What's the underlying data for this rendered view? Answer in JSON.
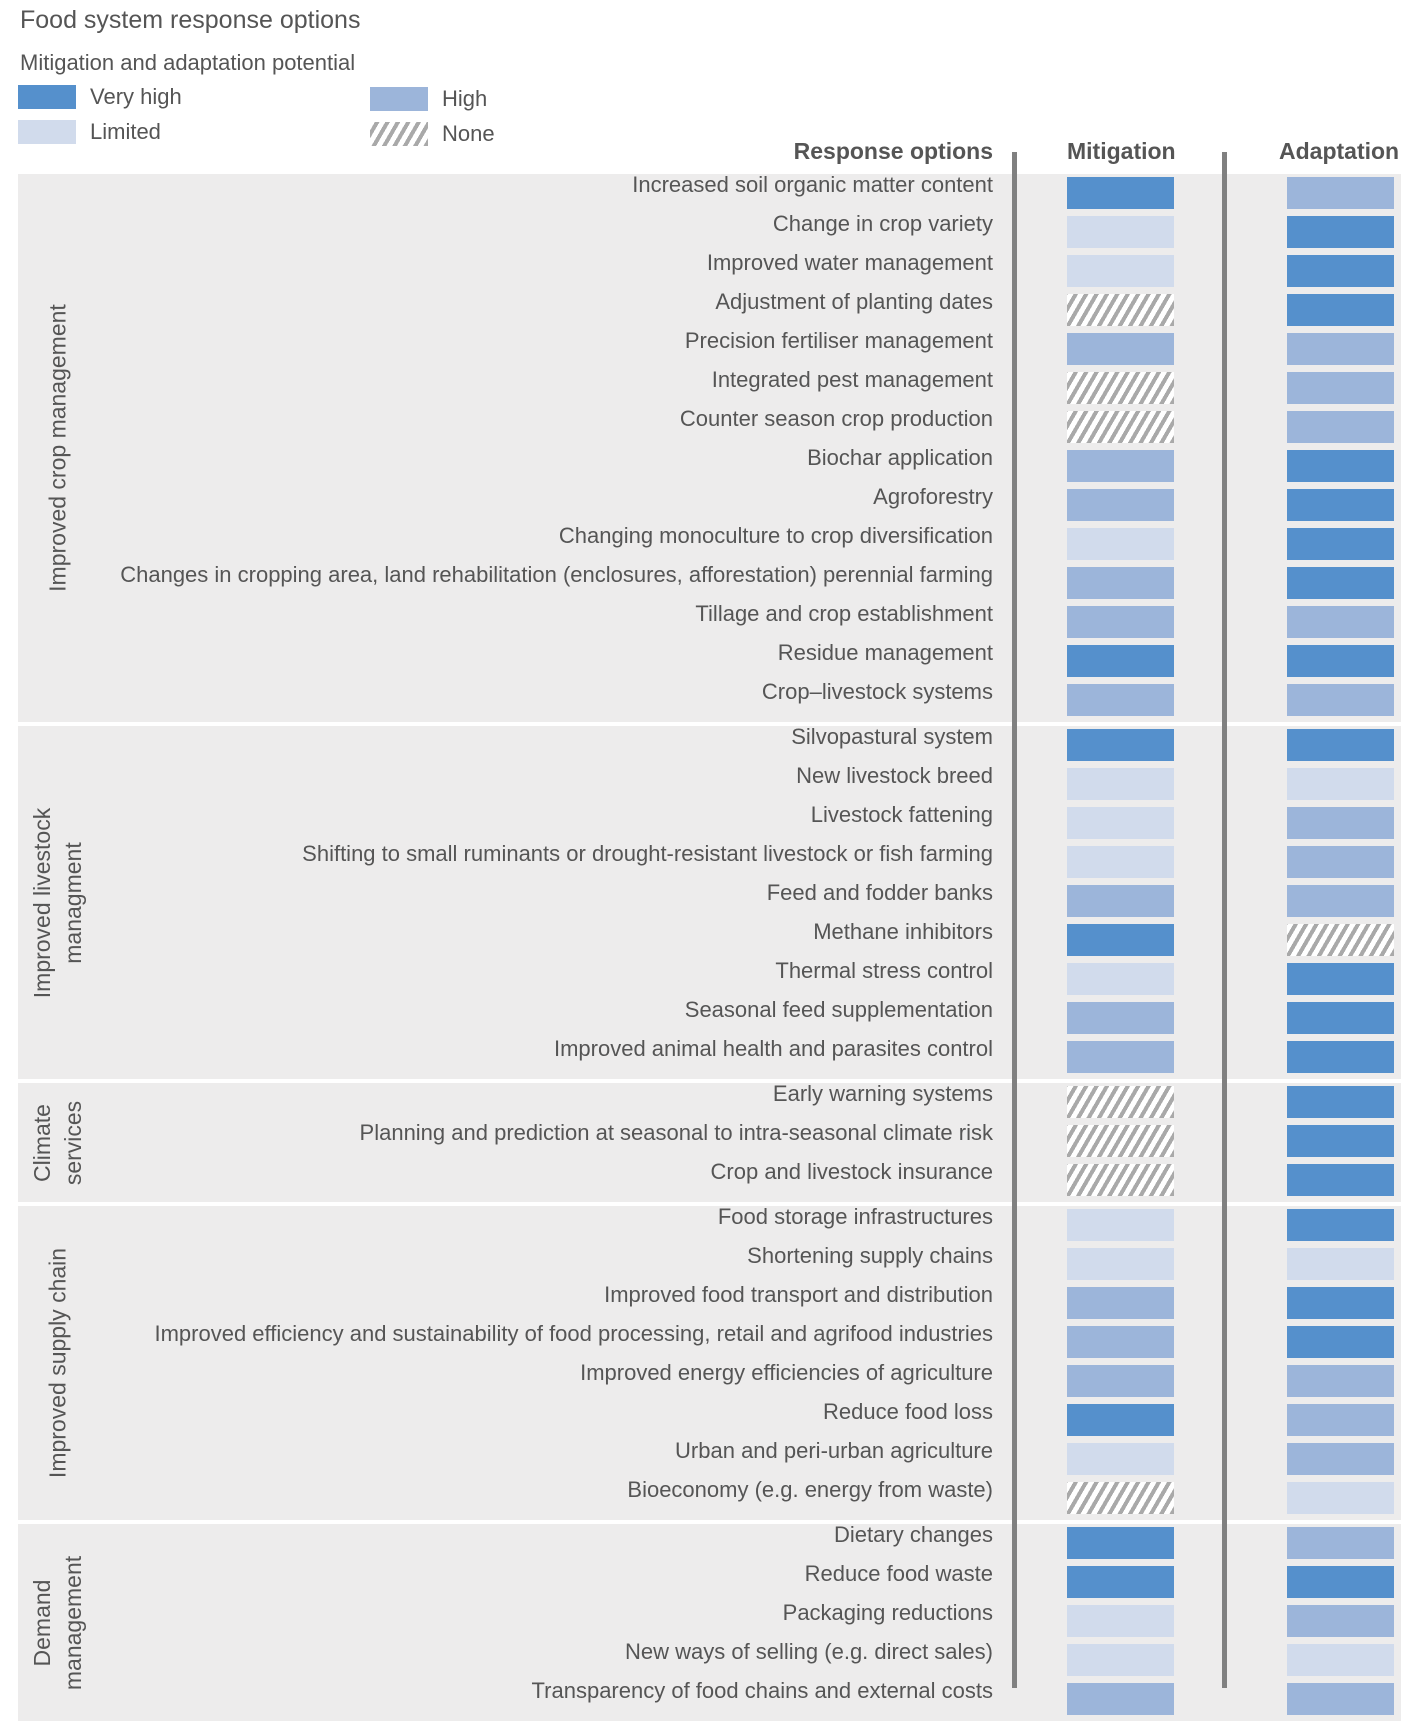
{
  "title": "Food system response options",
  "subtitle": "Mitigation and adaptation potential",
  "legend": [
    {
      "label": "Very high",
      "level": "very_high"
    },
    {
      "label": "High",
      "level": "high"
    },
    {
      "label": "Limited",
      "level": "limited"
    },
    {
      "label": "None",
      "level": "none"
    }
  ],
  "colors": {
    "very_high": "#5590cc",
    "high": "#9cb5da",
    "limited": "#d1dbec",
    "none_hatch": "#a9a9a9",
    "panel_background": "#edecec",
    "divider": "#808080",
    "text": "#555555"
  },
  "columns": {
    "options": "Response options",
    "mitigation": "Mitigation",
    "adaptation": "Adaptation"
  },
  "groups": [
    {
      "label": "Improved crop management",
      "rows": [
        {
          "option": "Increased soil organic matter content",
          "mitigation": "very_high",
          "adaptation": "high"
        },
        {
          "option": "Change in crop variety",
          "mitigation": "limited",
          "adaptation": "very_high"
        },
        {
          "option": "Improved water management",
          "mitigation": "limited",
          "adaptation": "very_high"
        },
        {
          "option": "Adjustment of planting dates",
          "mitigation": "none",
          "adaptation": "very_high"
        },
        {
          "option": "Precision fertiliser management",
          "mitigation": "high",
          "adaptation": "high"
        },
        {
          "option": "Integrated pest management",
          "mitigation": "none",
          "adaptation": "high"
        },
        {
          "option": "Counter season crop production",
          "mitigation": "none",
          "adaptation": "high"
        },
        {
          "option": "Biochar application",
          "mitigation": "high",
          "adaptation": "very_high"
        },
        {
          "option": "Agroforestry",
          "mitigation": "high",
          "adaptation": "very_high"
        },
        {
          "option": "Changing monoculture to crop diversification",
          "mitigation": "limited",
          "adaptation": "very_high"
        },
        {
          "option": "Changes in cropping area, land rehabilitation (enclosures, afforestation) perennial farming",
          "mitigation": "high",
          "adaptation": "very_high"
        },
        {
          "option": "Tillage and crop establishment",
          "mitigation": "high",
          "adaptation": "high"
        },
        {
          "option": "Residue management",
          "mitigation": "very_high",
          "adaptation": "very_high"
        },
        {
          "option": "Crop–livestock systems",
          "mitigation": "high",
          "adaptation": "high"
        }
      ]
    },
    {
      "label": "Improved livestock\nmanagment",
      "rows": [
        {
          "option": "Silvopastural system",
          "mitigation": "very_high",
          "adaptation": "very_high"
        },
        {
          "option": "New livestock breed",
          "mitigation": "limited",
          "adaptation": "limited"
        },
        {
          "option": "Livestock fattening",
          "mitigation": "limited",
          "adaptation": "high"
        },
        {
          "option": "Shifting to small ruminants or drought-resistant livestock or fish farming",
          "mitigation": "limited",
          "adaptation": "high"
        },
        {
          "option": "Feed and fodder banks",
          "mitigation": "high",
          "adaptation": "high"
        },
        {
          "option": "Methane inhibitors",
          "mitigation": "very_high",
          "adaptation": "none"
        },
        {
          "option": "Thermal stress control",
          "mitigation": "limited",
          "adaptation": "very_high"
        },
        {
          "option": "Seasonal feed supplementation",
          "mitigation": "high",
          "adaptation": "very_high"
        },
        {
          "option": "Improved animal health and parasites control",
          "mitigation": "high",
          "adaptation": "very_high"
        }
      ]
    },
    {
      "label": "Climate\nservices",
      "rows": [
        {
          "option": "Early warning systems",
          "mitigation": "none",
          "adaptation": "very_high"
        },
        {
          "option": "Planning and prediction at seasonal to intra-seasonal climate risk",
          "mitigation": "none",
          "adaptation": "very_high"
        },
        {
          "option": "Crop and livestock insurance",
          "mitigation": "none",
          "adaptation": "very_high"
        }
      ]
    },
    {
      "label": "Improved supply chain",
      "rows": [
        {
          "option": "Food storage infrastructures",
          "mitigation": "limited",
          "adaptation": "very_high"
        },
        {
          "option": "Shortening supply chains",
          "mitigation": "limited",
          "adaptation": "limited"
        },
        {
          "option": "Improved food transport and distribution",
          "mitigation": "high",
          "adaptation": "very_high"
        },
        {
          "option": "Improved efficiency and sustainability of food processing, retail and agrifood industries",
          "mitigation": "high",
          "adaptation": "very_high"
        },
        {
          "option": "Improved energy efficiencies of agriculture",
          "mitigation": "high",
          "adaptation": "high"
        },
        {
          "option": "Reduce food loss",
          "mitigation": "very_high",
          "adaptation": "high"
        },
        {
          "option": "Urban and peri-urban agriculture",
          "mitigation": "limited",
          "adaptation": "high"
        },
        {
          "option": "Bioeconomy (e.g. energy from waste)",
          "mitigation": "none",
          "adaptation": "limited"
        }
      ]
    },
    {
      "label": "Demand\nmanagement",
      "rows": [
        {
          "option": "Dietary changes",
          "mitigation": "very_high",
          "adaptation": "high"
        },
        {
          "option": "Reduce food waste",
          "mitigation": "very_high",
          "adaptation": "very_high"
        },
        {
          "option": "Packaging reductions",
          "mitigation": "limited",
          "adaptation": "high"
        },
        {
          "option": "New ways of selling (e.g. direct sales)",
          "mitigation": "limited",
          "adaptation": "limited"
        },
        {
          "option": "Transparency of food chains and external costs",
          "mitigation": "high",
          "adaptation": "high"
        }
      ]
    }
  ]
}
